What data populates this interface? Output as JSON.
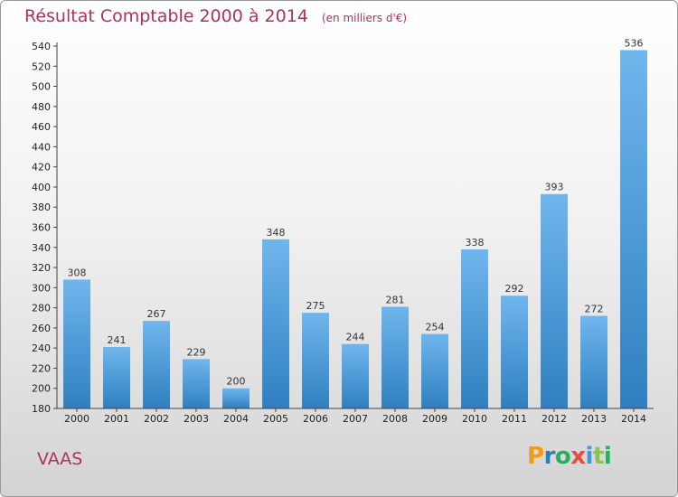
{
  "header": {
    "title": "Résultat Comptable 2000 à 2014",
    "subtitle": "(en milliers d'€)"
  },
  "footer": {
    "commune": "VAAS",
    "logo": {
      "text": "Proxiti",
      "letters": [
        "P",
        "r",
        "o",
        "x",
        "i",
        "t",
        "i"
      ],
      "colors": [
        "#f39c12",
        "#2980b9",
        "#27ae60",
        "#e74c3c",
        "#3a9ad9",
        "#8bc34a",
        "#27ae60"
      ]
    }
  },
  "colors": {
    "bar_light": "#6fb6ec",
    "bar_dark": "#2f7fc0",
    "axis": "#444444",
    "title": "#b0305f"
  },
  "chart_data": {
    "type": "bar",
    "title": "Résultat Comptable 2000 à 2014",
    "subtitle": "(en milliers d'€)",
    "xlabel": "",
    "ylabel": "",
    "categories": [
      "2000",
      "2001",
      "2002",
      "2003",
      "2004",
      "2005",
      "2006",
      "2007",
      "2008",
      "2009",
      "2010",
      "2011",
      "2012",
      "2013",
      "2014"
    ],
    "values": [
      308,
      241,
      267,
      229,
      200,
      348,
      275,
      244,
      281,
      254,
      338,
      292,
      393,
      272,
      536
    ],
    "value_labels": [
      "308",
      "241",
      "267",
      "229",
      "200",
      "348",
      "275",
      "244",
      "281",
      "254",
      "338",
      "292",
      "393",
      "272",
      "536"
    ],
    "ylim": [
      180,
      540
    ],
    "yticks": [
      180,
      200,
      220,
      240,
      260,
      280,
      300,
      320,
      340,
      360,
      380,
      400,
      420,
      440,
      460,
      480,
      500,
      520,
      540
    ],
    "ytick_labels": [
      "180",
      "200",
      "220",
      "240",
      "260",
      "280",
      "300",
      "320",
      "340",
      "360",
      "380",
      "400",
      "420",
      "440",
      "460",
      "480",
      "500",
      "520",
      "540"
    ],
    "grid": false,
    "legend": "none"
  }
}
